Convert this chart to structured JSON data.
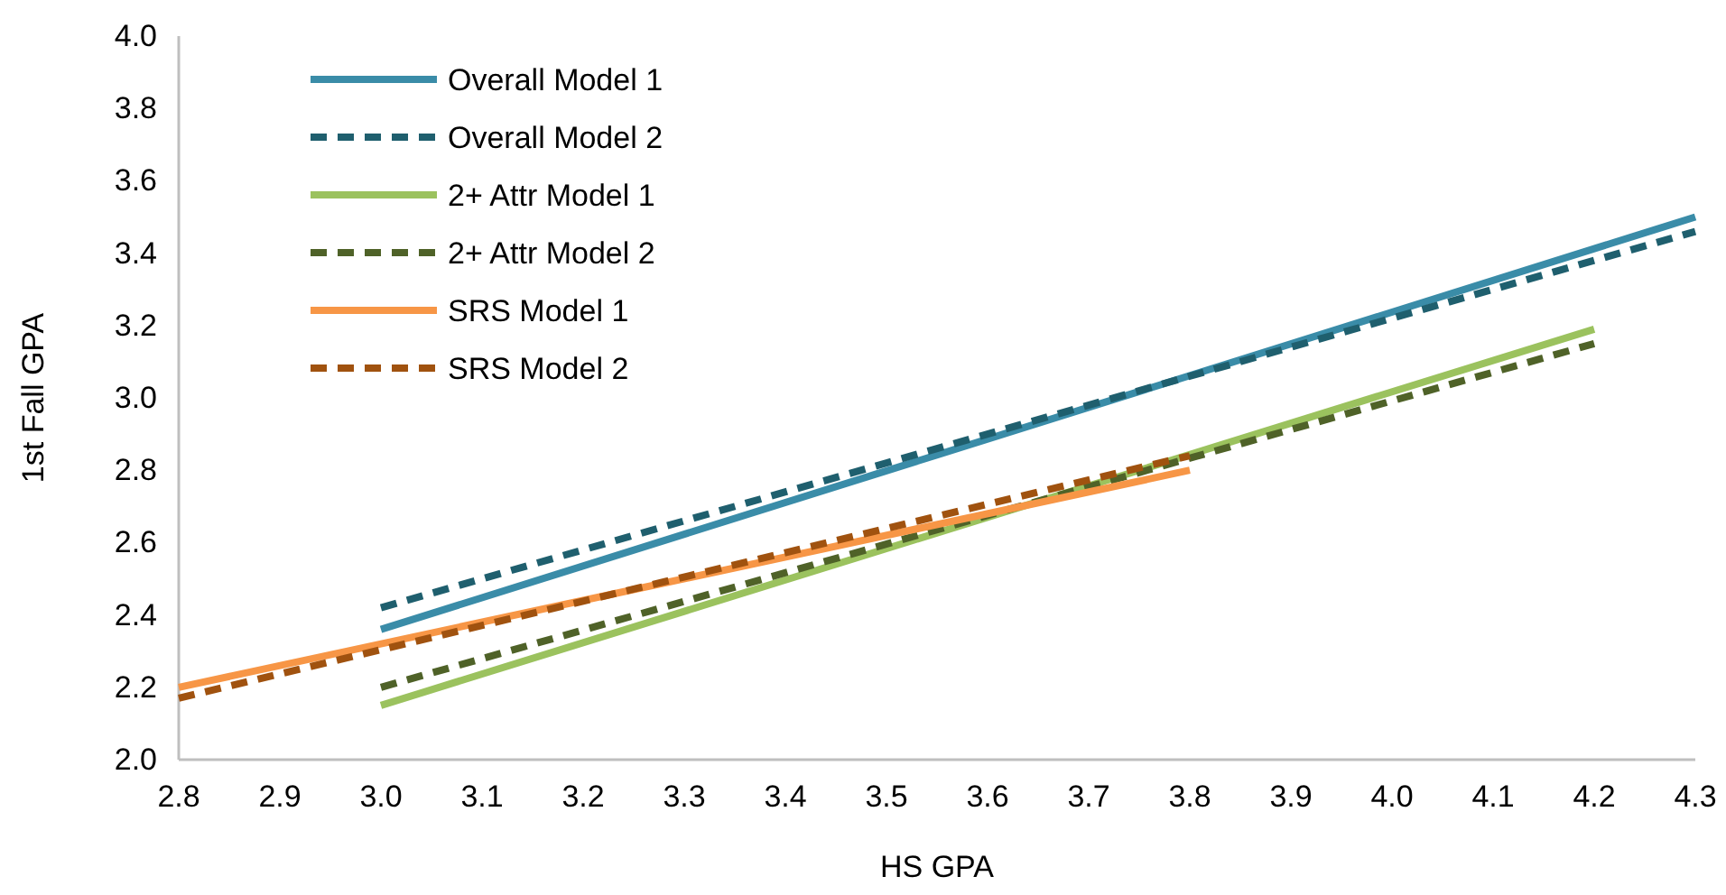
{
  "chart_data": {
    "type": "line",
    "xlabel": "HS GPA",
    "ylabel": "1st Fall GPA",
    "xlim": [
      2.8,
      4.3
    ],
    "xticks": [
      {
        "value": 2.8,
        "label": "2.8"
      },
      {
        "value": 2.9,
        "label": "2.9"
      },
      {
        "value": 3.0,
        "label": "3.0"
      },
      {
        "value": 3.1,
        "label": "3.1"
      },
      {
        "value": 3.2,
        "label": "3.2"
      },
      {
        "value": 3.3,
        "label": "3.3"
      },
      {
        "value": 3.4,
        "label": "3.4"
      },
      {
        "value": 3.5,
        "label": "3.5"
      },
      {
        "value": 3.6,
        "label": "3.6"
      },
      {
        "value": 3.7,
        "label": "3.7"
      },
      {
        "value": 3.8,
        "label": "3.8"
      },
      {
        "value": 3.9,
        "label": "3.9"
      },
      {
        "value": 4.0,
        "label": "4.0"
      },
      {
        "value": 4.1,
        "label": "4.1"
      },
      {
        "value": 4.2,
        "label": "4.2"
      },
      {
        "value": 4.3,
        "label": "4.3"
      }
    ],
    "ylim": [
      2.0,
      4.0
    ],
    "yticks": [
      {
        "value": 2.0,
        "label": "2.0"
      },
      {
        "value": 2.2,
        "label": "2.2"
      },
      {
        "value": 2.4,
        "label": "2.4"
      },
      {
        "value": 2.6,
        "label": "2.6"
      },
      {
        "value": 2.8,
        "label": "2.8"
      },
      {
        "value": 3.0,
        "label": "3.0"
      },
      {
        "value": 3.2,
        "label": "3.2"
      },
      {
        "value": 3.4,
        "label": "3.4"
      },
      {
        "value": 3.6,
        "label": "3.6"
      },
      {
        "value": 3.8,
        "label": "3.8"
      },
      {
        "value": 4.0,
        "label": "4.0"
      }
    ],
    "grid": false,
    "legend": "top left",
    "marker": "none",
    "series": [
      {
        "name": "Overall Model 1",
        "color": "#3a8ca8",
        "line_style": "solid",
        "x": [
          3.0,
          4.3
        ],
        "values": [
          2.36,
          3.5
        ]
      },
      {
        "name": "Overall Model 2",
        "color": "#1f5f6e",
        "line_style": "dashed",
        "x": [
          3.0,
          4.3
        ],
        "values": [
          2.42,
          3.46
        ]
      },
      {
        "name": "2+ Attr Model 1",
        "color": "#9bc25e",
        "line_style": "solid",
        "x": [
          3.0,
          4.2
        ],
        "values": [
          2.15,
          3.19
        ]
      },
      {
        "name": "2+ Attr Model 2",
        "color": "#4f6228",
        "line_style": "dashed",
        "x": [
          3.0,
          4.2
        ],
        "values": [
          2.2,
          3.15
        ]
      },
      {
        "name": "SRS Model 1",
        "color": "#f79646",
        "line_style": "solid",
        "x": [
          2.8,
          3.8
        ],
        "values": [
          2.2,
          2.8
        ]
      },
      {
        "name": "SRS Model 2",
        "color": "#a0520f",
        "line_style": "dashed",
        "x": [
          2.8,
          3.8
        ],
        "values": [
          2.17,
          2.84
        ]
      }
    ]
  }
}
